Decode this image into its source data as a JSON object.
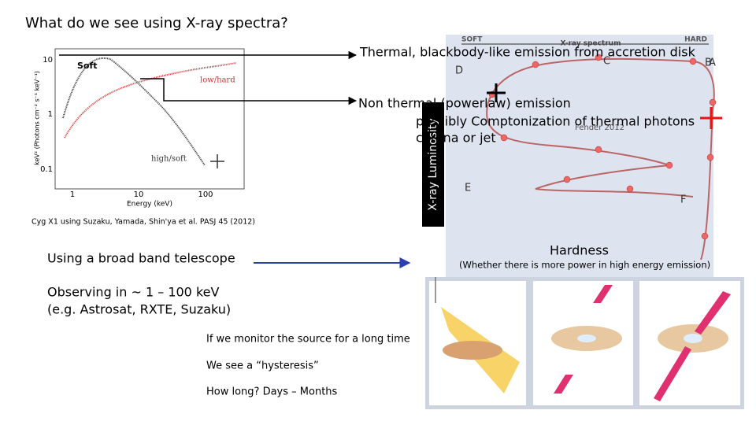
{
  "slide": {
    "title": "What do we see using X-ray spectra?",
    "spectrum_figure": {
      "overlay_label": "Soft",
      "y_label": "keV² (Photons cm⁻² s⁻¹ keV⁻¹)",
      "y_ticks": [
        "10",
        "1",
        "0.1"
      ],
      "x_ticks": [
        "1",
        "10",
        "100"
      ],
      "x_label": "Energy (keV)",
      "curve_labels": [
        "low/hard",
        "high/soft"
      ],
      "caption": "Cyg X1 using Suzaku, Yamada, Shin'ya et al. PASJ 45 (2012)"
    },
    "callouts": {
      "thermal": "Thermal, blackbody-like emission from accretion disk",
      "nonthermal": [
        "Non thermal (powerlaw) emission",
        "possibly Comptonization of thermal photons",
        "corona or jet"
      ]
    },
    "hysteresis_figure": {
      "top_left": "SOFT",
      "top_middle": "X-ray spectrum",
      "top_right": "HARD",
      "states": [
        "A",
        "B",
        "C",
        "D",
        "E",
        "F"
      ],
      "credit": "Fender 2012",
      "y_label": "X-ray Luminosity",
      "x_label": "Hardness",
      "x_note": "(Whether there is more power in high energy emission)"
    },
    "body": {
      "telescope": "Using a broad band telescope",
      "energy": [
        "Observing in ~ 1 – 100 keV",
        "(e.g. Astrosat, RXTE, Suzaku)"
      ],
      "monitor": [
        "If we monitor the source for a long time",
        "We see a “hysteresis”",
        "How long? Days – Months"
      ]
    }
  }
}
